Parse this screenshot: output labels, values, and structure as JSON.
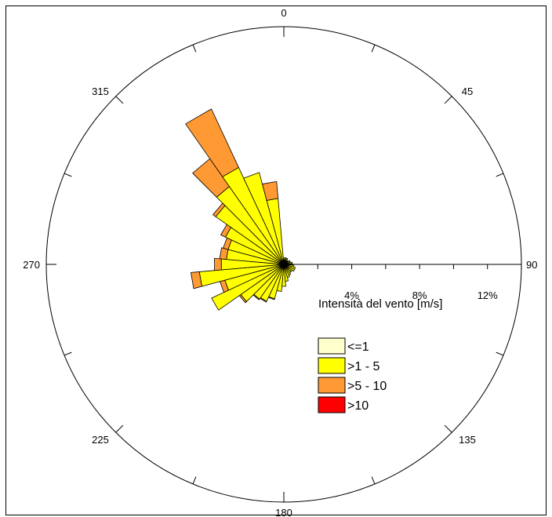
{
  "chart_data": {
    "type": "wind-rose",
    "legend_title": "Intensità del vento [m/s]",
    "legend_placement": "bottom-right",
    "direction_labels": [
      "0",
      "45",
      "90",
      "135",
      "180",
      "225",
      "270",
      "315"
    ],
    "radial_ticks": [
      4,
      8,
      12
    ],
    "radial_tick_labels": [
      "4%",
      "8%",
      "12%"
    ],
    "radial_max": 14,
    "bins": [
      {
        "name": "<=1",
        "color": "#FFFFCC"
      },
      {
        "name": ">1 - 5",
        "color": "#FFFF00"
      },
      {
        "name": ">5 - 10",
        "color": "#FF9933"
      },
      {
        "name": ">10",
        "color": "#FF0000"
      }
    ],
    "sectors": [
      {
        "direction": 0,
        "values": [
          0.1,
          0.2,
          0.0,
          0.0
        ]
      },
      {
        "direction": 10,
        "values": [
          0.1,
          0.3,
          0.0,
          0.0
        ]
      },
      {
        "direction": 20,
        "values": [
          0.1,
          0.3,
          0.0,
          0.0
        ]
      },
      {
        "direction": 30,
        "values": [
          0.1,
          0.3,
          0.0,
          0.0
        ]
      },
      {
        "direction": 40,
        "values": [
          0.1,
          0.2,
          0.0,
          0.0
        ]
      },
      {
        "direction": 50,
        "values": [
          0.1,
          0.2,
          0.0,
          0.0
        ]
      },
      {
        "direction": 60,
        "values": [
          0.1,
          0.3,
          0.0,
          0.0
        ]
      },
      {
        "direction": 70,
        "values": [
          0.1,
          0.3,
          0.0,
          0.0
        ]
      },
      {
        "direction": 80,
        "values": [
          0.1,
          0.4,
          0.0,
          0.0
        ]
      },
      {
        "direction": 90,
        "values": [
          0.1,
          0.4,
          0.0,
          0.0
        ]
      },
      {
        "direction": 100,
        "values": [
          0.1,
          0.5,
          0.0,
          0.0
        ]
      },
      {
        "direction": 110,
        "values": [
          0.1,
          0.6,
          0.0,
          0.0
        ]
      },
      {
        "direction": 120,
        "values": [
          0.1,
          0.6,
          0.0,
          0.0
        ]
      },
      {
        "direction": 130,
        "values": [
          0.1,
          0.5,
          0.0,
          0.0
        ]
      },
      {
        "direction": 140,
        "values": [
          0.1,
          0.5,
          0.0,
          0.0
        ]
      },
      {
        "direction": 150,
        "values": [
          0.1,
          0.6,
          0.0,
          0.0
        ]
      },
      {
        "direction": 160,
        "values": [
          0.1,
          0.7,
          0.0,
          0.0
        ]
      },
      {
        "direction": 170,
        "values": [
          0.1,
          0.9,
          0.0,
          0.0
        ]
      },
      {
        "direction": 180,
        "values": [
          0.1,
          1.2,
          0.0,
          0.0
        ]
      },
      {
        "direction": 190,
        "values": [
          0.1,
          1.5,
          0.0,
          0.0
        ]
      },
      {
        "direction": 200,
        "values": [
          0.1,
          2.0,
          0.05,
          0.0
        ]
      },
      {
        "direction": 210,
        "values": [
          0.1,
          2.3,
          0.05,
          0.0
        ]
      },
      {
        "direction": 220,
        "values": [
          0.1,
          2.4,
          0.05,
          0.0
        ]
      },
      {
        "direction": 230,
        "values": [
          0.1,
          3.0,
          0.1,
          0.0
        ]
      },
      {
        "direction": 240,
        "values": [
          0.1,
          4.6,
          0.0,
          0.0
        ]
      },
      {
        "direction": 250,
        "values": [
          0.1,
          3.5,
          0.3,
          0.0
        ]
      },
      {
        "direction": 260,
        "values": [
          0.1,
          4.9,
          0.5,
          0.0
        ]
      },
      {
        "direction": 270,
        "values": [
          0.1,
          3.6,
          0.4,
          0.0
        ]
      },
      {
        "direction": 280,
        "values": [
          0.1,
          3.3,
          0.4,
          0.0
        ]
      },
      {
        "direction": 290,
        "values": [
          0.1,
          3.3,
          0.3,
          0.0
        ]
      },
      {
        "direction": 300,
        "values": [
          0.1,
          3.7,
          0.3,
          0.0
        ]
      },
      {
        "direction": 310,
        "values": [
          0.1,
          4.8,
          0.2,
          0.0
        ]
      },
      {
        "direction": 320,
        "values": [
          0.1,
          5.5,
          2.0,
          0.0
        ]
      },
      {
        "direction": 330,
        "values": [
          0.1,
          6.2,
          3.8,
          0.0
        ]
      },
      {
        "direction": 340,
        "values": [
          0.1,
          5.5,
          0.0,
          0.0
        ]
      },
      {
        "direction": 350,
        "values": [
          0.1,
          3.8,
          1.0,
          0.0
        ]
      }
    ]
  }
}
